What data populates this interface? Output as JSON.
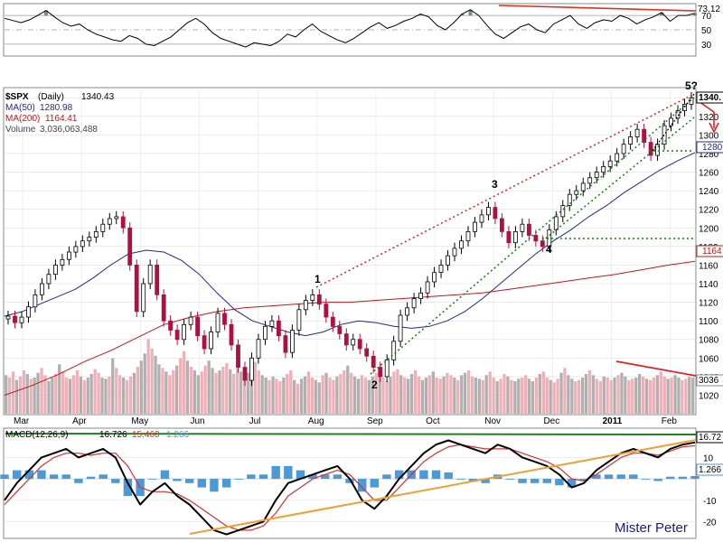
{
  "chart_data": [
    {
      "type": "line",
      "panel": "rsi",
      "ylim": [
        16,
        84
      ],
      "yticks": [
        30,
        50,
        70
      ],
      "value_label": "73.12",
      "series": [
        {
          "values": [
            66,
            63,
            60,
            64,
            70,
            77,
            68,
            60,
            55,
            58,
            50,
            44,
            40,
            36,
            34,
            42,
            38,
            30,
            28,
            34,
            40,
            50,
            60,
            66,
            58,
            46,
            38,
            34,
            30,
            26,
            32,
            30,
            28,
            34,
            44,
            40,
            50,
            58,
            48,
            42,
            36,
            32,
            38,
            46,
            54,
            60,
            52,
            56,
            62,
            66,
            72,
            68,
            56,
            50,
            60,
            72,
            78,
            70,
            56,
            44,
            38,
            46,
            54,
            58,
            50,
            46,
            58,
            64,
            70,
            58,
            52,
            60,
            64,
            62,
            70,
            66,
            58,
            64,
            68,
            74,
            62,
            70,
            70,
            73
          ]
        }
      ]
    },
    {
      "type": "line",
      "panel": "price",
      "ylim": [
        1002,
        1348
      ],
      "yticks": [
        1020,
        1040,
        1060,
        1080,
        1100,
        1120,
        1140,
        1160,
        1180,
        1200,
        1220,
        1240,
        1260,
        1280,
        1300,
        1320,
        1340
      ],
      "x_labels": [
        "Mar",
        "Apr",
        "May",
        "Jun",
        "Jul",
        "Aug",
        "Sep",
        "Oct",
        "Nov",
        "Dec",
        "2011",
        "Feb"
      ],
      "header": {
        "symbol": "$SPX",
        "period": "(Daily)",
        "last": "1340.43",
        "ma50_label": "MA(50)",
        "ma50_value": "1280.98",
        "ma200_label": "MA(200)",
        "ma200_value": "1164.41",
        "volume_label": "Volume",
        "volume_value": "3,036,063,488"
      },
      "value_tags": {
        "price": "1340.",
        "ma50": "1280",
        "ma200": "1164",
        "volume": "3036"
      },
      "wave_labels": [
        "1",
        "2",
        "3",
        "4",
        "5?"
      ],
      "series": [
        {
          "name": "$SPX",
          "values": [
            1105,
            1098,
            1104,
            1115,
            1128,
            1140,
            1150,
            1160,
            1166,
            1174,
            1180,
            1186,
            1190,
            1196,
            1204,
            1210,
            1212,
            1200,
            1160,
            1110,
            1140,
            1160,
            1128,
            1100,
            1090,
            1080,
            1096,
            1104,
            1084,
            1070,
            1088,
            1108,
            1096,
            1074,
            1050,
            1036,
            1060,
            1080,
            1094,
            1100,
            1084,
            1066,
            1090,
            1112,
            1122,
            1128,
            1118,
            1104,
            1094,
            1086,
            1074,
            1080,
            1070,
            1062,
            1050,
            1040,
            1058,
            1078,
            1106,
            1114,
            1124,
            1130,
            1142,
            1152,
            1160,
            1170,
            1178,
            1186,
            1196,
            1206,
            1214,
            1222,
            1210,
            1196,
            1184,
            1196,
            1204,
            1192,
            1186,
            1180,
            1198,
            1212,
            1224,
            1236,
            1240,
            1248,
            1254,
            1260,
            1266,
            1272,
            1280,
            1290,
            1298,
            1306,
            1292,
            1278,
            1290,
            1310,
            1318,
            1326,
            1333,
            1340
          ]
        },
        {
          "name": "MA(50)",
          "values": [
            1105,
            1110,
            1118,
            1126,
            1134,
            1146,
            1160,
            1172,
            1176,
            1174,
            1165,
            1150,
            1130,
            1112,
            1100,
            1094,
            1088,
            1084,
            1088,
            1096,
            1100,
            1098,
            1094,
            1092,
            1094,
            1100,
            1110,
            1124,
            1140,
            1156,
            1172,
            1186,
            1198,
            1212,
            1224,
            1238,
            1250,
            1262,
            1272,
            1281
          ]
        },
        {
          "name": "MA(200)",
          "values": [
            1020,
            1030,
            1042,
            1056,
            1068,
            1082,
            1096,
            1104,
            1110,
            1114,
            1116,
            1118,
            1120,
            1120,
            1122,
            1124,
            1126,
            1128,
            1130,
            1134,
            1138,
            1142,
            1146,
            1150,
            1155,
            1160,
            1164
          ]
        }
      ]
    },
    {
      "type": "bar",
      "panel": "volume",
      "series": [
        {
          "name": "Volume",
          "values": [
            3.2,
            3.0,
            3.5,
            2.8,
            3.1,
            3.6,
            3.3,
            2.9,
            3.0,
            3.4,
            3.8,
            3.2,
            2.7,
            3.0,
            3.3,
            4.1,
            3.5,
            3.0,
            2.9,
            3.2,
            3.6,
            3.1,
            2.8,
            3.0,
            3.3,
            3.7,
            3.4,
            3.0,
            2.9,
            3.1,
            4.6,
            3.8,
            3.2,
            3.0,
            2.8,
            3.1,
            3.4,
            3.9,
            4.4,
            5.0,
            6.2,
            5.4,
            4.8,
            4.1,
            3.8,
            3.5,
            3.2,
            3.6,
            4.0,
            4.6,
            5.2,
            4.4,
            3.9,
            3.6,
            3.2,
            3.5,
            4.0,
            4.4,
            3.8,
            3.4,
            3.6,
            3.9,
            4.2,
            3.7,
            3.3,
            3.8,
            3.5,
            3.2,
            3.4,
            3.9,
            4.3,
            3.6,
            3.2,
            3.0,
            2.8,
            3.1,
            2.9,
            2.7,
            3.0,
            3.3,
            3.6,
            2.8,
            2.5,
            2.9,
            3.1,
            3.5,
            3.0,
            2.8,
            2.6,
            3.2,
            3.4,
            3.0,
            2.8,
            3.1,
            3.3,
            3.6,
            4.0,
            3.4,
            3.1,
            2.9,
            3.2,
            3.0,
            2.8,
            3.1,
            3.4,
            3.3,
            3.0,
            2.7,
            3.1,
            3.5,
            3.7,
            3.2,
            3.0,
            2.9,
            3.3,
            3.6,
            3.1,
            2.8,
            3.0,
            3.2,
            3.5,
            3.0,
            2.9,
            3.1,
            3.4,
            3.2,
            3.0,
            2.8,
            3.2,
            3.4,
            3.6,
            3.1,
            3.0,
            2.9,
            2.8,
            3.2,
            3.5,
            3.0,
            2.7,
            2.9,
            3.3,
            3.1,
            2.8,
            2.7,
            2.9,
            3.0,
            3.2,
            2.9,
            2.7,
            3.0,
            3.3,
            3.5,
            3.0,
            2.8,
            2.6,
            2.9,
            3.4,
            3.8,
            3.2,
            2.9,
            2.7,
            2.8,
            3.0,
            3.3,
            3.6,
            3.2,
            2.9,
            2.7,
            3.1,
            3.0,
            2.8,
            3.0,
            3.2,
            3.4,
            3.1,
            2.8,
            2.9,
            3.0,
            3.3,
            3.1,
            2.9,
            2.8,
            3.0,
            3.2,
            3.5,
            3.1,
            2.9,
            3.0,
            3.2,
            3.0,
            2.8,
            2.9,
            3.1,
            3.0
          ]
        }
      ]
    },
    {
      "type": "line",
      "panel": "macd",
      "title": "MACD(12,26,9)",
      "title_values": [
        "16.726",
        "15.460",
        "1.266"
      ],
      "ylim": [
        -27,
        22
      ],
      "yticks": [
        -20,
        -10,
        10
      ],
      "value_tags": {
        "macd": "16.72",
        "hist": "1.266"
      },
      "signature": "Mister Peter",
      "series": [
        {
          "name": "MACD",
          "values": [
            -10,
            -2,
            4,
            10,
            12,
            14,
            10,
            12,
            14,
            10,
            -2,
            -12,
            -6,
            -2,
            -8,
            -12,
            -18,
            -24,
            -26,
            -24,
            -22,
            -20,
            -10,
            -2,
            0,
            2,
            4,
            6,
            0,
            -10,
            -14,
            -8,
            0,
            6,
            12,
            16,
            18,
            16,
            14,
            12,
            16,
            14,
            10,
            8,
            6,
            2,
            -4,
            -2,
            4,
            8,
            12,
            14,
            12,
            10,
            14,
            16,
            17
          ]
        },
        {
          "name": "Signal",
          "values": [
            -12,
            -6,
            0,
            6,
            10,
            12,
            12,
            11,
            12,
            12,
            6,
            -4,
            -6,
            -6,
            -7,
            -10,
            -14,
            -18,
            -22,
            -24,
            -24,
            -22,
            -16,
            -8,
            -4,
            0,
            2,
            4,
            2,
            -4,
            -10,
            -10,
            -4,
            2,
            8,
            12,
            15,
            16,
            15,
            14,
            14,
            14,
            12,
            10,
            8,
            5,
            0,
            -1,
            2,
            6,
            10,
            12,
            12,
            11,
            13,
            15,
            15.5
          ]
        },
        {
          "name": "Histogram",
          "values": [
            2,
            4,
            4,
            4,
            2,
            2,
            -2,
            1,
            2,
            -2,
            -8,
            -8,
            0,
            4,
            -1,
            -2,
            -4,
            -6,
            -4,
            0,
            2,
            2,
            6,
            6,
            4,
            2,
            2,
            2,
            -2,
            -6,
            -4,
            2,
            4,
            4,
            4,
            4,
            3,
            0,
            -1,
            -2,
            2,
            0,
            -2,
            -2,
            -2,
            -3,
            -4,
            -1,
            2,
            2,
            2,
            2,
            0,
            -1,
            1,
            1,
            1.3
          ]
        }
      ]
    }
  ]
}
